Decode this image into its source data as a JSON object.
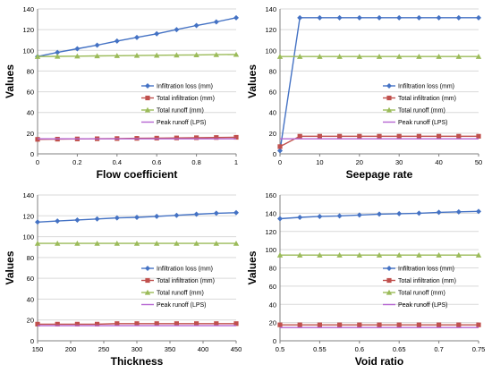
{
  "colors": {
    "infiltration_loss": "#4472C4",
    "total_infiltration": "#C0504D",
    "total_runoff": "#9BBB59",
    "peak_runoff": "#B666D2",
    "grid": "#d9d9d9",
    "axis": "#808080"
  },
  "chart_data": [
    {
      "type": "line",
      "xlabel": "Flow coefficient",
      "ylabel": "Values",
      "xlim": [
        0,
        1
      ],
      "ylim": [
        0,
        140
      ],
      "xticks": [
        "0",
        "0.2",
        "0.4",
        "0.6",
        "0.8",
        "1"
      ],
      "yticks": [
        "0",
        "20",
        "40",
        "60",
        "80",
        "100",
        "120",
        "140"
      ],
      "grid": true,
      "legend_position": "right-middle",
      "x": [
        0,
        0.1,
        0.2,
        0.3,
        0.4,
        0.5,
        0.6,
        0.7,
        0.8,
        0.9,
        1.0
      ],
      "series": [
        {
          "name": "Infiltration loss (mm)",
          "marker": "diamond",
          "values": [
            94,
            98,
            101.5,
            105,
            109,
            112.5,
            116,
            120,
            124,
            127.5,
            131.5
          ]
        },
        {
          "name": "Total infiltration (mm)",
          "marker": "square",
          "values": [
            14,
            14.2,
            14.4,
            14.6,
            14.8,
            15,
            15.2,
            15.4,
            15.6,
            15.8,
            16
          ]
        },
        {
          "name": "Total runoff (mm)",
          "marker": "triangle",
          "values": [
            94,
            94.2,
            94.4,
            94.6,
            94.8,
            95,
            95.2,
            95.4,
            95.6,
            95.8,
            96
          ]
        },
        {
          "name": "Peak runoff (LPS)",
          "marker": "none",
          "values": [
            14.5,
            14.5,
            14.5,
            14.5,
            14.5,
            14.5,
            14.5,
            14.5,
            14.5,
            14.5,
            14.5
          ]
        }
      ]
    },
    {
      "type": "line",
      "xlabel": "Seepage rate",
      "ylabel": "Values",
      "xlim": [
        0,
        50
      ],
      "ylim": [
        0,
        140
      ],
      "xticks": [
        "0",
        "10",
        "20",
        "30",
        "40",
        "50"
      ],
      "yticks": [
        "0",
        "20",
        "40",
        "60",
        "80",
        "100",
        "120",
        "140"
      ],
      "grid": true,
      "legend_position": "right-middle",
      "x": [
        0,
        5,
        10,
        15,
        20,
        25,
        30,
        35,
        40,
        45,
        50
      ],
      "series": [
        {
          "name": "Infiltration loss (mm)",
          "marker": "diamond",
          "values": [
            3,
            131.5,
            131.5,
            131.5,
            131.5,
            131.5,
            131.5,
            131.5,
            131.5,
            131.5,
            131.5
          ]
        },
        {
          "name": "Total infiltration (mm)",
          "marker": "square",
          "values": [
            7,
            17,
            17,
            17,
            17,
            17,
            17,
            17,
            17,
            17,
            17
          ]
        },
        {
          "name": "Total runoff (mm)",
          "marker": "triangle",
          "values": [
            94,
            94,
            94,
            94,
            94,
            94,
            94,
            94,
            94,
            94,
            94
          ]
        },
        {
          "name": "Peak runoff (LPS)",
          "marker": "none",
          "values": [
            14.5,
            14.5,
            14.5,
            14.5,
            14.5,
            14.5,
            14.5,
            14.5,
            14.5,
            14.5,
            14.5
          ]
        }
      ]
    },
    {
      "type": "line",
      "xlabel": "Thickness",
      "ylabel": "Values",
      "xlim": [
        150,
        450
      ],
      "ylim": [
        0,
        140
      ],
      "xticks": [
        "150",
        "200",
        "250",
        "300",
        "350",
        "400",
        "450"
      ],
      "yticks": [
        "0",
        "20",
        "40",
        "60",
        "80",
        "100",
        "120",
        "140"
      ],
      "grid": true,
      "legend_position": "right-middle",
      "x": [
        150,
        180,
        210,
        240,
        270,
        300,
        330,
        360,
        390,
        420,
        450
      ],
      "series": [
        {
          "name": "Infiltration loss (mm)",
          "marker": "diamond",
          "values": [
            114,
            115,
            116,
            117,
            118,
            118.5,
            119.5,
            120.5,
            121.5,
            122.5,
            123
          ]
        },
        {
          "name": "Total infiltration (mm)",
          "marker": "square",
          "values": [
            16,
            16,
            16,
            16,
            16.5,
            16.5,
            16.5,
            16.5,
            16.5,
            16.5,
            16.5
          ]
        },
        {
          "name": "Total runoff (mm)",
          "marker": "triangle",
          "values": [
            93.5,
            93.5,
            93.5,
            93.5,
            93.5,
            93.5,
            93.5,
            93.5,
            93.5,
            93.5,
            93.5
          ]
        },
        {
          "name": "Peak runoff (LPS)",
          "marker": "none",
          "values": [
            14.5,
            14.5,
            14.5,
            14.5,
            14.5,
            14.5,
            14.5,
            14.5,
            14.5,
            14.5,
            14.5
          ]
        }
      ]
    },
    {
      "type": "line",
      "xlabel": "Void ratio",
      "ylabel": "Values",
      "xlim": [
        0.5,
        0.75
      ],
      "ylim": [
        0,
        160
      ],
      "xticks": [
        "0.5",
        "0.55",
        "0.6",
        "0.65",
        "0.7",
        "0.75"
      ],
      "yticks": [
        "0",
        "20",
        "40",
        "60",
        "80",
        "100",
        "120",
        "140",
        "160"
      ],
      "grid": true,
      "legend_position": "right-middle",
      "x": [
        0.5,
        0.525,
        0.55,
        0.575,
        0.6,
        0.625,
        0.65,
        0.675,
        0.7,
        0.725,
        0.75
      ],
      "series": [
        {
          "name": "Infiltration loss (mm)",
          "marker": "diamond",
          "values": [
            134,
            135.5,
            136.5,
            137,
            138,
            139,
            139.5,
            140,
            141,
            141.5,
            142
          ]
        },
        {
          "name": "Total infiltration (mm)",
          "marker": "square",
          "values": [
            17.5,
            17.5,
            17.5,
            17.5,
            17.5,
            17.5,
            17.5,
            17.5,
            17.5,
            17.5,
            17.5
          ]
        },
        {
          "name": "Total runoff (mm)",
          "marker": "triangle",
          "values": [
            94,
            94,
            94,
            94,
            94,
            94,
            94,
            94,
            94,
            94,
            94
          ]
        },
        {
          "name": "Peak runoff (LPS)",
          "marker": "none",
          "values": [
            14.5,
            14.5,
            14.5,
            14.5,
            14.5,
            14.5,
            14.5,
            14.5,
            14.5,
            14.5,
            14.5
          ]
        }
      ]
    }
  ]
}
